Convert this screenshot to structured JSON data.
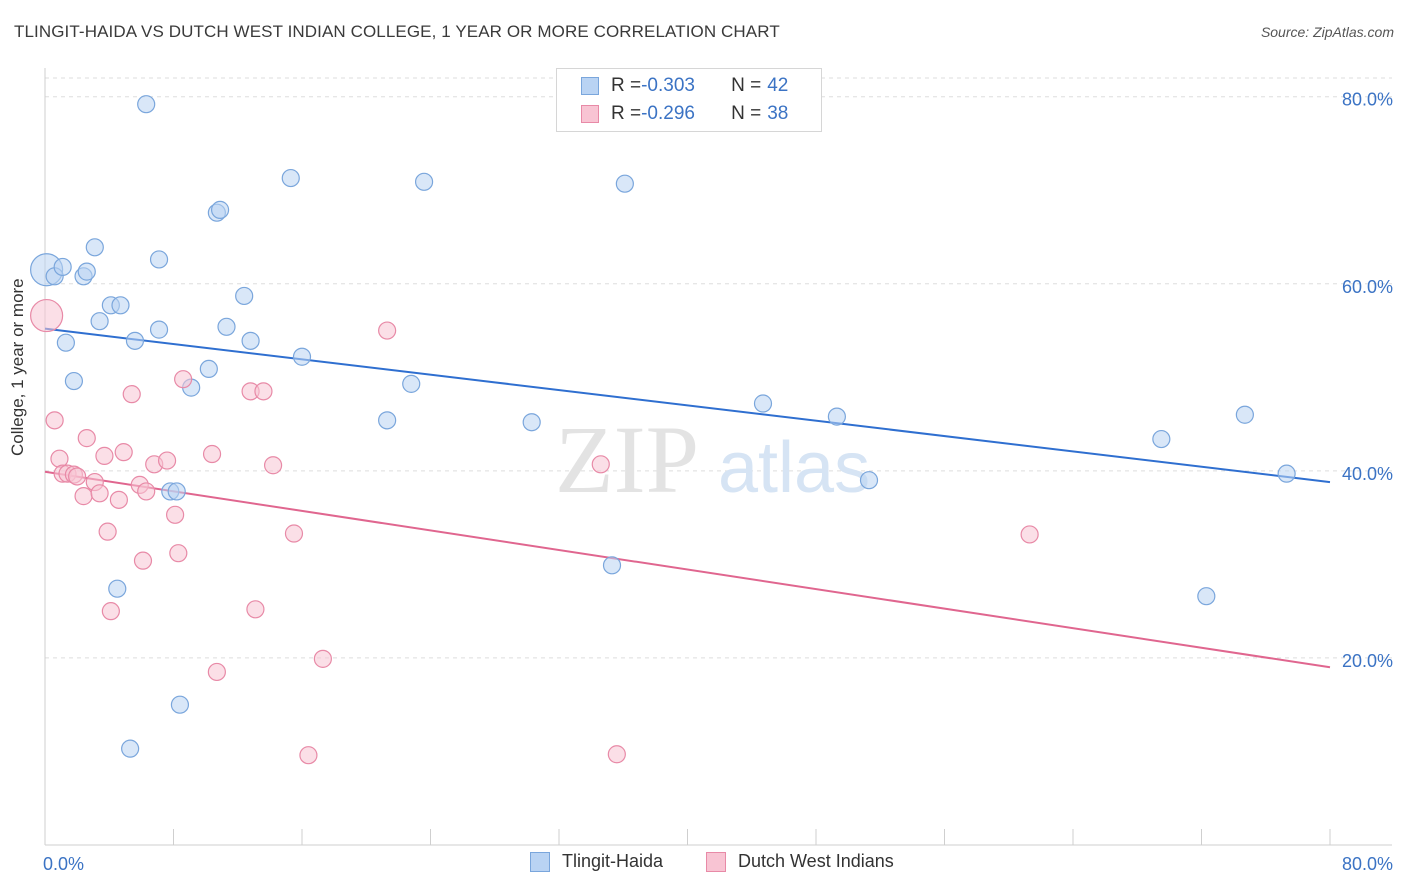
{
  "title": "TLINGIT-HAIDA VS DUTCH WEST INDIAN COLLEGE, 1 YEAR OR MORE CORRELATION CHART",
  "source": "Source: ZipAtlas.com",
  "watermark": {
    "zip": "ZIP",
    "atlas": "atlas"
  },
  "legend_top": [
    {
      "r_label": "R = ",
      "r_value": "-0.303",
      "n_label": "N = ",
      "n_value": "42"
    },
    {
      "r_label": "R = ",
      "r_value": "-0.296",
      "n_label": "N = ",
      "n_value": "38"
    }
  ],
  "legend_bottom": [
    "Tlingit-Haida",
    "Dutch West Indians"
  ],
  "colors": {
    "blue_fill": "#b9d3f3",
    "blue_stroke": "#7aa6dc",
    "blue_line": "#2f6fd0",
    "pink_fill": "#f8c4d3",
    "pink_stroke": "#e88aa7",
    "pink_line": "#e0668f",
    "axis_text": "#3b73c4",
    "grid": "#dddddd"
  },
  "chart_data": {
    "type": "scatter",
    "title": "TLINGIT-HAIDA VS DUTCH WEST INDIAN COLLEGE, 1 YEAR OR MORE CORRELATION CHART",
    "xlabel": "",
    "ylabel": "College, 1 year or more",
    "xlim": [
      0,
      80
    ],
    "ylim": [
      0,
      82
    ],
    "x_tick_labels": [
      "0.0%",
      "80.0%"
    ],
    "y_ticks": [
      20,
      40,
      60,
      80
    ],
    "y_tick_labels": [
      "20.0%",
      "40.0%",
      "60.0%",
      "80.0%"
    ],
    "grid": true,
    "series": [
      {
        "name": "Tlingit-Haida",
        "r": -0.303,
        "n": 42,
        "trend": {
          "x": [
            0,
            80
          ],
          "y": [
            55.2,
            38.8
          ]
        },
        "points": [
          {
            "x": 0.1,
            "y": 61.5,
            "big": true
          },
          {
            "x": 0.6,
            "y": 60.8
          },
          {
            "x": 1.1,
            "y": 61.8
          },
          {
            "x": 1.3,
            "y": 53.7
          },
          {
            "x": 1.8,
            "y": 49.6
          },
          {
            "x": 2.4,
            "y": 60.8
          },
          {
            "x": 2.6,
            "y": 61.3
          },
          {
            "x": 3.1,
            "y": 63.9
          },
          {
            "x": 3.4,
            "y": 56.0
          },
          {
            "x": 4.1,
            "y": 57.7
          },
          {
            "x": 4.7,
            "y": 57.7
          },
          {
            "x": 5.6,
            "y": 53.9
          },
          {
            "x": 6.3,
            "y": 79.2
          },
          {
            "x": 7.1,
            "y": 55.1
          },
          {
            "x": 7.1,
            "y": 62.6
          },
          {
            "x": 7.8,
            "y": 37.8
          },
          {
            "x": 8.2,
            "y": 37.8
          },
          {
            "x": 8.4,
            "y": 15.0
          },
          {
            "x": 9.1,
            "y": 48.9
          },
          {
            "x": 10.2,
            "y": 50.9
          },
          {
            "x": 10.7,
            "y": 67.6
          },
          {
            "x": 10.9,
            "y": 67.9
          },
          {
            "x": 11.3,
            "y": 55.4
          },
          {
            "x": 12.4,
            "y": 58.7
          },
          {
            "x": 12.8,
            "y": 53.9
          },
          {
            "x": 15.3,
            "y": 71.3
          },
          {
            "x": 16.0,
            "y": 52.2
          },
          {
            "x": 21.3,
            "y": 45.4
          },
          {
            "x": 22.8,
            "y": 49.3
          },
          {
            "x": 23.6,
            "y": 70.9
          },
          {
            "x": 30.3,
            "y": 45.2
          },
          {
            "x": 35.3,
            "y": 29.9
          },
          {
            "x": 36.1,
            "y": 70.7
          },
          {
            "x": 44.7,
            "y": 47.2
          },
          {
            "x": 49.3,
            "y": 45.8
          },
          {
            "x": 51.3,
            "y": 39.0
          },
          {
            "x": 69.5,
            "y": 43.4
          },
          {
            "x": 72.3,
            "y": 26.6
          },
          {
            "x": 74.7,
            "y": 46.0
          },
          {
            "x": 77.3,
            "y": 39.7
          },
          {
            "x": 4.5,
            "y": 27.4
          },
          {
            "x": 5.3,
            "y": 10.3
          }
        ]
      },
      {
        "name": "Dutch West Indians",
        "r": -0.296,
        "n": 38,
        "trend": {
          "x": [
            0,
            80
          ],
          "y": [
            39.9,
            19.0
          ]
        },
        "points": [
          {
            "x": 0.1,
            "y": 56.6,
            "big": true
          },
          {
            "x": 0.6,
            "y": 45.4
          },
          {
            "x": 0.9,
            "y": 41.3
          },
          {
            "x": 1.1,
            "y": 39.7
          },
          {
            "x": 1.4,
            "y": 39.7
          },
          {
            "x": 1.8,
            "y": 39.6
          },
          {
            "x": 2.0,
            "y": 39.4
          },
          {
            "x": 2.4,
            "y": 37.3
          },
          {
            "x": 2.6,
            "y": 43.5
          },
          {
            "x": 3.1,
            "y": 38.8
          },
          {
            "x": 3.4,
            "y": 37.6
          },
          {
            "x": 3.7,
            "y": 41.6
          },
          {
            "x": 3.9,
            "y": 33.5
          },
          {
            "x": 4.1,
            "y": 25.0
          },
          {
            "x": 4.6,
            "y": 36.9
          },
          {
            "x": 4.9,
            "y": 42.0
          },
          {
            "x": 5.4,
            "y": 48.2
          },
          {
            "x": 5.9,
            "y": 38.5
          },
          {
            "x": 6.1,
            "y": 30.4
          },
          {
            "x": 6.3,
            "y": 37.8
          },
          {
            "x": 6.8,
            "y": 40.7
          },
          {
            "x": 7.6,
            "y": 41.1
          },
          {
            "x": 8.1,
            "y": 35.3
          },
          {
            "x": 8.3,
            "y": 31.2
          },
          {
            "x": 8.6,
            "y": 49.8
          },
          {
            "x": 10.4,
            "y": 41.8
          },
          {
            "x": 10.7,
            "y": 18.5
          },
          {
            "x": 12.8,
            "y": 48.5
          },
          {
            "x": 13.1,
            "y": 25.2
          },
          {
            "x": 13.6,
            "y": 48.5
          },
          {
            "x": 14.2,
            "y": 40.6
          },
          {
            "x": 15.5,
            "y": 33.3
          },
          {
            "x": 16.4,
            "y": 9.6
          },
          {
            "x": 17.3,
            "y": 19.9
          },
          {
            "x": 21.3,
            "y": 55.0
          },
          {
            "x": 34.6,
            "y": 40.7
          },
          {
            "x": 35.6,
            "y": 9.7
          },
          {
            "x": 61.3,
            "y": 33.2
          }
        ]
      }
    ]
  }
}
